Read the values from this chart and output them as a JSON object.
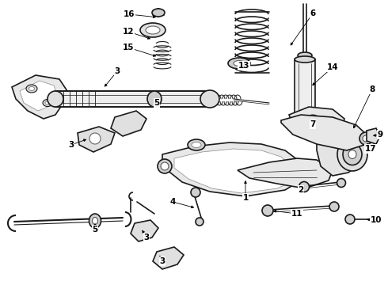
{
  "bg_color": "#ffffff",
  "line_color": "#1a1a1a",
  "fig_width": 4.9,
  "fig_height": 3.6,
  "dpi": 100
}
